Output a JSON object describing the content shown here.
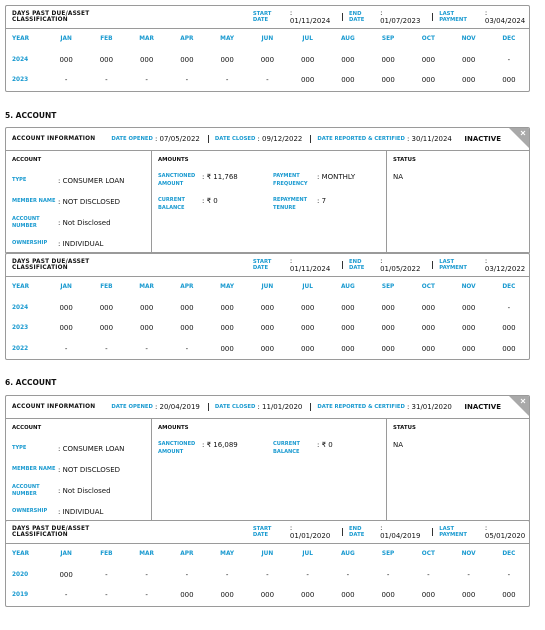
{
  "dpd_top": {
    "title": "DAYS PAST DUE/ASSET CLASSIFICATION",
    "start_label": "START DATE",
    "start_value": ": 01/11/2024",
    "end_label": "END DATE",
    "end_value": ": 01/07/2023",
    "last_label": "LAST PAYMENT",
    "last_value": ": 03/04/2024",
    "columns": [
      "YEAR",
      "JAN",
      "FEB",
      "MAR",
      "APR",
      "MAY",
      "JUN",
      "JUL",
      "AUG",
      "SEP",
      "OCT",
      "NOV",
      "DEC"
    ],
    "rows": [
      [
        "2024",
        "000",
        "000",
        "000",
        "000",
        "000",
        "000",
        "000",
        "000",
        "000",
        "000",
        "000",
        "-"
      ],
      [
        "2023",
        "-",
        "-",
        "-",
        "-",
        "-",
        "-",
        "000",
        "000",
        "000",
        "000",
        "000",
        "000"
      ]
    ]
  },
  "accounts": [
    {
      "heading": "5. ACCOUNT",
      "info": {
        "title": "ACCOUNT INFORMATION",
        "opened_label": "DATE OPENED",
        "opened_value": ": 07/05/2022",
        "closed_label": "DATE CLOSED",
        "closed_value": ": 09/12/2022",
        "reported_label": "DATE REPORTED & CERTIFIED",
        "reported_value": ": 30/11/2024",
        "status_badge": "INACTIVE"
      },
      "account_heading": "ACCOUNT",
      "fields": [
        {
          "label": "TYPE",
          "value": ": CONSUMER LOAN"
        },
        {
          "label": "MEMBER NAME",
          "value": ": NOT DISCLOSED"
        },
        {
          "label": "ACCOUNT NUMBER",
          "value": ": Not Disclosed"
        },
        {
          "label": "OWNERSHIP",
          "value": ": INDIVIDUAL"
        }
      ],
      "amounts_heading": "AMOUNTS",
      "amounts": [
        {
          "label": "SANCTIONED AMOUNT",
          "value": ": ₹ 11,768"
        },
        {
          "label": "PAYMENT FREQUENCY",
          "value": ": MONTHLY"
        },
        {
          "label": "CURRENT BALANCE",
          "value": ": ₹ 0"
        },
        {
          "label": "REPAYMENT TENURE",
          "value": ": 7"
        }
      ],
      "status_heading": "STATUS",
      "status": "NA",
      "dpd": {
        "title": "DAYS PAST DUE/ASSET CLASSIFICATION",
        "start_label": "START DATE",
        "start_value": ": 01/11/2024",
        "end_label": "END DATE",
        "end_value": ": 01/05/2022",
        "last_label": "LAST PAYMENT",
        "last_value": ": 03/12/2022",
        "columns": [
          "YEAR",
          "JAN",
          "FEB",
          "MAR",
          "APR",
          "MAY",
          "JUN",
          "JUL",
          "AUG",
          "SEP",
          "OCT",
          "NOV",
          "DEC"
        ],
        "rows": [
          [
            "2024",
            "000",
            "000",
            "000",
            "000",
            "000",
            "000",
            "000",
            "000",
            "000",
            "000",
            "000",
            "-"
          ],
          [
            "2023",
            "000",
            "000",
            "000",
            "000",
            "000",
            "000",
            "000",
            "000",
            "000",
            "000",
            "000",
            "000"
          ],
          [
            "2022",
            "-",
            "-",
            "-",
            "-",
            "000",
            "000",
            "000",
            "000",
            "000",
            "000",
            "000",
            "000"
          ]
        ]
      }
    },
    {
      "heading": "6. ACCOUNT",
      "info": {
        "title": "ACCOUNT INFORMATION",
        "opened_label": "DATE OPENED",
        "opened_value": ": 20/04/2019",
        "closed_label": "DATE CLOSED",
        "closed_value": ": 11/01/2020",
        "reported_label": "DATE REPORTED & CERTIFIED",
        "reported_value": ": 31/01/2020",
        "status_badge": "INACTIVE"
      },
      "account_heading": "ACCOUNT",
      "fields": [
        {
          "label": "TYPE",
          "value": ": CONSUMER LOAN"
        },
        {
          "label": "MEMBER NAME",
          "value": ": NOT DISCLOSED"
        },
        {
          "label": "ACCOUNT NUMBER",
          "value": ": Not Disclosed"
        },
        {
          "label": "OWNERSHIP",
          "value": ": INDIVIDUAL"
        }
      ],
      "amounts_heading": "AMOUNTS",
      "amounts": [
        {
          "label": "SANCTIONED AMOUNT",
          "value": ": ₹ 16,089"
        },
        {
          "label": "CURRENT BALANCE",
          "value": ": ₹ 0"
        }
      ],
      "status_heading": "STATUS",
      "status": "NA",
      "dpd": {
        "title": "DAYS PAST DUE/ASSET CLASSIFICATION",
        "start_label": "START DATE",
        "start_value": ": 01/01/2020",
        "end_label": "END DATE",
        "end_value": ": 01/04/2019",
        "last_label": "LAST PAYMENT",
        "last_value": ": 05/01/2020",
        "columns": [
          "YEAR",
          "JAN",
          "FEB",
          "MAR",
          "APR",
          "MAY",
          "JUN",
          "JUL",
          "AUG",
          "SEP",
          "OCT",
          "NOV",
          "DEC"
        ],
        "rows": [
          [
            "2020",
            "000",
            "-",
            "-",
            "-",
            "-",
            "-",
            "-",
            "-",
            "-",
            "-",
            "-",
            "-"
          ],
          [
            "2019",
            "-",
            "-",
            "-",
            "000",
            "000",
            "000",
            "000",
            "000",
            "000",
            "000",
            "000",
            "000"
          ]
        ]
      }
    }
  ]
}
